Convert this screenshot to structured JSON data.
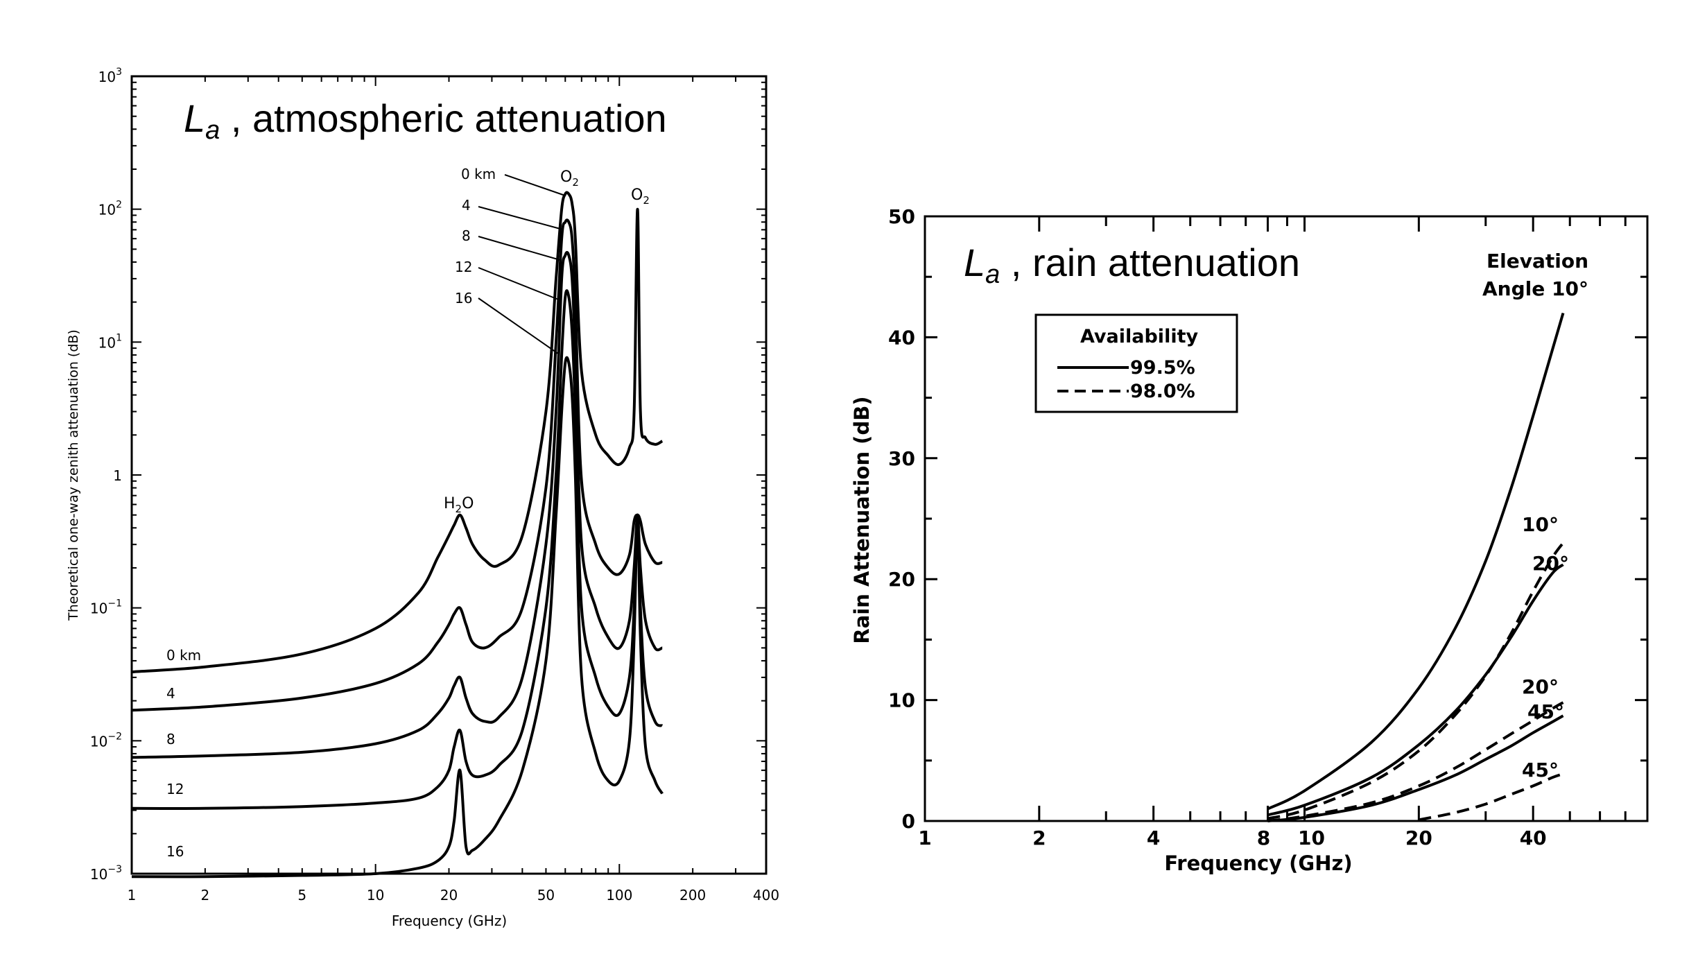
{
  "colors": {
    "background": "#ffffff",
    "ink": "#000000"
  },
  "chart_data": [
    {
      "type": "line",
      "title_symbol": "L",
      "title_subscript": "a",
      "title_text": " , atmospheric attenuation",
      "xlabel": "Frequency (GHz)",
      "ylabel": "Theoretical one-way zenith attenuation (dB)",
      "xscale": "log",
      "yscale": "log",
      "xlim": [
        1,
        400
      ],
      "ylim": [
        0.001,
        1000
      ],
      "x_ticks": [
        1,
        2,
        5,
        10,
        20,
        50,
        100,
        200,
        400
      ],
      "y_ticks": [
        {
          "value": 0.001,
          "base": "10",
          "exp": "−3"
        },
        {
          "value": 0.01,
          "base": "10",
          "exp": "−2"
        },
        {
          "value": 0.1,
          "base": "10",
          "exp": "−1"
        },
        {
          "value": 1,
          "base": "1",
          "exp": ""
        },
        {
          "value": 10,
          "base": "10",
          "exp": "1"
        },
        {
          "value": 100,
          "base": "10",
          "exp": "2"
        },
        {
          "value": 1000,
          "base": "10",
          "exp": "3"
        }
      ],
      "annotations": {
        "h2o": {
          "base": "H",
          "sub": "2",
          "tail": "O"
        },
        "o2_60": {
          "base": "O",
          "sub": "2"
        },
        "o2_119": {
          "base": "O",
          "sub": "2"
        },
        "peak_labels": [
          "0 km",
          "4",
          "8",
          "12",
          "16"
        ]
      },
      "series": [
        {
          "name": "0 km",
          "x": [
            1,
            2,
            5,
            10,
            15,
            18,
            20,
            21,
            22.2,
            23.5,
            25,
            28,
            32,
            40,
            50,
            55,
            58,
            60,
            62,
            64,
            66,
            70,
            80,
            90,
            100,
            110,
            115,
            118.75,
            122,
            128,
            140,
            150
          ],
          "y": [
            0.033,
            0.036,
            0.045,
            0.07,
            0.13,
            0.24,
            0.35,
            0.42,
            0.5,
            0.4,
            0.3,
            0.23,
            0.21,
            0.35,
            3,
            30,
            100,
            130,
            130,
            110,
            60,
            6,
            2,
            1.4,
            1.2,
            1.6,
            3,
            100,
            3,
            1.9,
            1.7,
            1.8
          ]
        },
        {
          "name": "4",
          "x": [
            1,
            2,
            5,
            10,
            15,
            18,
            20,
            21,
            22.2,
            23.5,
            25,
            28,
            32,
            40,
            50,
            55,
            58,
            60,
            62,
            64,
            66,
            70,
            80,
            90,
            100,
            110,
            115,
            118.75,
            122,
            128,
            140,
            150
          ],
          "y": [
            0.017,
            0.018,
            0.021,
            0.027,
            0.038,
            0.055,
            0.075,
            0.09,
            0.1,
            0.075,
            0.055,
            0.05,
            0.06,
            0.1,
            0.8,
            10,
            60,
            80,
            80,
            60,
            20,
            0.9,
            0.3,
            0.2,
            0.18,
            0.25,
            0.45,
            0.5,
            0.45,
            0.3,
            0.22,
            0.22
          ]
        },
        {
          "name": "8",
          "x": [
            1,
            2,
            5,
            10,
            15,
            18,
            20,
            21,
            22.2,
            23.5,
            25,
            28,
            32,
            40,
            50,
            55,
            58,
            60,
            62,
            64,
            66,
            70,
            80,
            90,
            100,
            110,
            115,
            118.75,
            122,
            128,
            140,
            150
          ],
          "y": [
            0.0075,
            0.0077,
            0.0082,
            0.0095,
            0.012,
            0.016,
            0.021,
            0.026,
            0.03,
            0.021,
            0.016,
            0.014,
            0.015,
            0.03,
            0.3,
            3,
            30,
            45,
            45,
            30,
            8,
            0.3,
            0.1,
            0.06,
            0.05,
            0.08,
            0.2,
            0.5,
            0.2,
            0.08,
            0.05,
            0.05
          ]
        },
        {
          "name": "12",
          "x": [
            1,
            2,
            5,
            10,
            15,
            18,
            20,
            21,
            22.2,
            23.5,
            25,
            28,
            32,
            40,
            50,
            55,
            58,
            60,
            62,
            64,
            66,
            70,
            80,
            90,
            100,
            110,
            115,
            118.75,
            122,
            128,
            140,
            150
          ],
          "y": [
            0.0031,
            0.0031,
            0.0032,
            0.0034,
            0.0037,
            0.0045,
            0.006,
            0.009,
            0.012,
            0.007,
            0.0055,
            0.0055,
            0.0065,
            0.012,
            0.1,
            1,
            8,
            22,
            22,
            12,
            3,
            0.1,
            0.03,
            0.018,
            0.016,
            0.03,
            0.1,
            0.5,
            0.1,
            0.025,
            0.014,
            0.013
          ]
        },
        {
          "name": "16",
          "x": [
            1,
            2,
            5,
            10,
            15,
            18,
            20,
            21,
            22.2,
            23.5,
            25,
            28,
            32,
            40,
            50,
            55,
            58,
            60,
            62,
            64,
            66,
            70,
            80,
            90,
            100,
            110,
            115,
            118.75,
            122,
            128,
            140,
            150
          ],
          "y": [
            0.00095,
            0.00095,
            0.00097,
            0.001,
            0.0011,
            0.00125,
            0.0016,
            0.0025,
            0.006,
            0.0016,
            0.0015,
            0.0018,
            0.0025,
            0.006,
            0.04,
            0.5,
            3,
            7,
            7,
            4,
            1,
            0.03,
            0.008,
            0.005,
            0.005,
            0.01,
            0.06,
            0.5,
            0.06,
            0.009,
            0.005,
            0.004
          ]
        }
      ]
    },
    {
      "type": "line",
      "title_symbol": "L",
      "title_subscript": "a",
      "title_text": " , rain attenuation",
      "xlabel": "Frequency (GHz)",
      "ylabel": "Rain Attenuation (dB)",
      "xscale": "log",
      "xlim": [
        1,
        80
      ],
      "ylim": [
        0,
        50
      ],
      "x_ticks": [
        1,
        2,
        4,
        8,
        10,
        20,
        40
      ],
      "y_ticks": [
        0,
        10,
        20,
        30,
        40,
        50
      ],
      "legend": {
        "title": "Availability",
        "entries": [
          {
            "label": "99.5%",
            "style": "solid"
          },
          {
            "label": "98.0%",
            "style": "dashed"
          }
        ],
        "position": "top-left"
      },
      "annotations": {
        "elevation_line1": "Elevation",
        "elevation_line2": "Angle 10°",
        "labels": [
          "10°",
          "20°",
          "20°",
          "45°",
          "45°"
        ]
      },
      "series": [
        {
          "label": "10°",
          "availability": "99.5%",
          "style": "solid",
          "x": [
            8,
            10,
            15,
            20,
            25,
            30,
            35,
            40,
            45,
            48
          ],
          "y": [
            1,
            2.5,
            6.5,
            11,
            16,
            21.5,
            27.5,
            33.5,
            39,
            42
          ]
        },
        {
          "label": "10°",
          "availability": "98.0%",
          "style": "dashed",
          "x": [
            8,
            10,
            15,
            20,
            25,
            30,
            35,
            40,
            45,
            48
          ],
          "y": [
            0.2,
            0.9,
            3.2,
            5.8,
            8.8,
            12,
            15.5,
            19,
            21.8,
            23
          ]
        },
        {
          "label": "20°",
          "availability": "99.5%",
          "style": "solid",
          "x": [
            8,
            10,
            15,
            20,
            25,
            30,
            35,
            40,
            45,
            48
          ],
          "y": [
            0.5,
            1.3,
            3.6,
            6.3,
            9.1,
            12.1,
            15.2,
            18.2,
            20.5,
            21.2
          ]
        },
        {
          "label": "20°",
          "availability": "98.0%",
          "style": "dashed",
          "x": [
            8,
            10,
            15,
            20,
            25,
            30,
            35,
            40,
            45,
            48
          ],
          "y": [
            0,
            0.4,
            1.5,
            2.9,
            4.4,
            5.9,
            7.2,
            8.3,
            9.3,
            9.8
          ]
        },
        {
          "label": "45°",
          "availability": "99.5%",
          "style": "solid",
          "x": [
            8,
            10,
            15,
            20,
            25,
            30,
            35,
            40,
            45,
            48
          ],
          "y": [
            0,
            0.3,
            1.3,
            2.6,
            3.8,
            5.1,
            6.2,
            7.3,
            8.2,
            8.7
          ]
        },
        {
          "label": "45°",
          "availability": "98.0%",
          "style": "dashed",
          "x": [
            20,
            25,
            30,
            35,
            40,
            45,
            48
          ],
          "y": [
            0.1,
            0.7,
            1.4,
            2.2,
            2.9,
            3.6,
            3.9
          ]
        }
      ]
    }
  ]
}
